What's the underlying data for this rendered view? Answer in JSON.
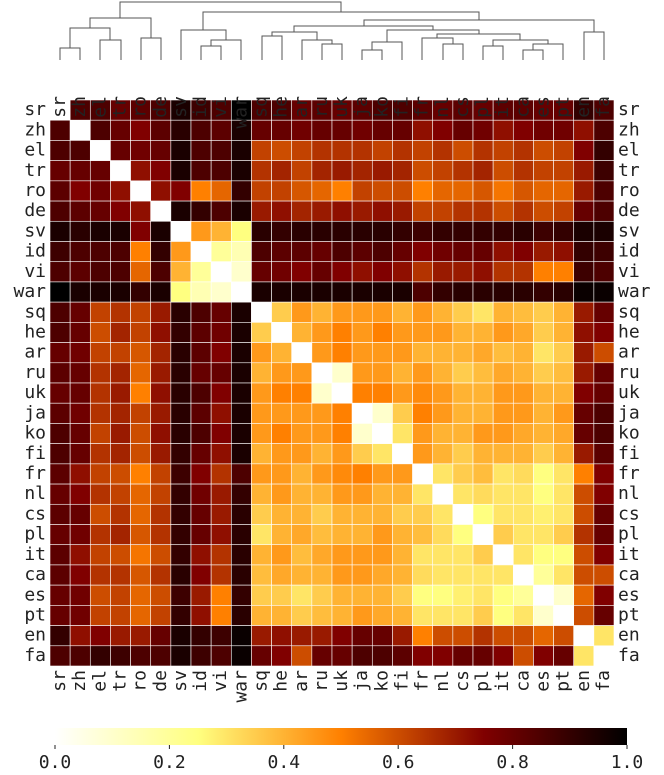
{
  "chart_data": {
    "type": "heatmap",
    "colormap": "afmhot_r",
    "clim": [
      0,
      1
    ],
    "labels": [
      "sr",
      "zh",
      "el",
      "tr",
      "ro",
      "de",
      "sv",
      "id",
      "vi",
      "war",
      "sq",
      "he",
      "ar",
      "ru",
      "uk",
      "ja",
      "ko",
      "fi",
      "fr",
      "nl",
      "cs",
      "pl",
      "it",
      "ca",
      "es",
      "pt",
      "en",
      "fa"
    ],
    "values": [
      [
        0,
        0.85,
        0.85,
        0.8,
        0.82,
        0.85,
        0.95,
        0.88,
        0.85,
        1,
        0.85,
        0.85,
        0.8,
        0.82,
        0.8,
        0.82,
        0.85,
        0.85,
        0.82,
        0.8,
        0.82,
        0.8,
        0.82,
        0.82,
        0.8,
        0.8,
        0.9,
        0.85
      ],
      [
        0.85,
        0,
        0.85,
        0.8,
        0.75,
        0.82,
        0.92,
        0.85,
        0.82,
        0.95,
        0.8,
        0.8,
        0.78,
        0.8,
        0.8,
        0.78,
        0.8,
        0.8,
        0.72,
        0.75,
        0.8,
        0.78,
        0.72,
        0.75,
        0.78,
        0.78,
        0.72,
        0.85
      ],
      [
        0.85,
        0.85,
        0,
        0.8,
        0.78,
        0.8,
        0.95,
        0.85,
        0.85,
        0.95,
        0.62,
        0.6,
        0.62,
        0.65,
        0.65,
        0.65,
        0.62,
        0.65,
        0.62,
        0.65,
        0.6,
        0.65,
        0.62,
        0.65,
        0.6,
        0.62,
        0.75,
        0.9
      ],
      [
        0.8,
        0.8,
        0.8,
        0,
        0.72,
        0.75,
        0.95,
        0.85,
        0.85,
        0.95,
        0.65,
        0.68,
        0.62,
        0.68,
        0.7,
        0.68,
        0.7,
        0.68,
        0.6,
        0.62,
        0.65,
        0.68,
        0.6,
        0.65,
        0.62,
        0.62,
        0.7,
        0.88
      ],
      [
        0.82,
        0.75,
        0.78,
        0.72,
        0,
        0.72,
        0.75,
        0.5,
        0.55,
        0.9,
        0.62,
        0.62,
        0.58,
        0.55,
        0.5,
        0.62,
        0.6,
        0.6,
        0.5,
        0.55,
        0.55,
        0.58,
        0.52,
        0.58,
        0.55,
        0.55,
        0.7,
        0.85
      ],
      [
        0.85,
        0.82,
        0.8,
        0.75,
        0.72,
        0,
        0.95,
        0.9,
        0.85,
        0.95,
        0.7,
        0.72,
        0.68,
        0.7,
        0.72,
        0.7,
        0.72,
        0.7,
        0.62,
        0.62,
        0.65,
        0.65,
        0.6,
        0.65,
        0.6,
        0.62,
        0.8,
        0.85
      ],
      [
        0.95,
        0.92,
        0.95,
        0.95,
        0.75,
        0.95,
        0,
        0.45,
        0.4,
        0.25,
        0.92,
        0.9,
        0.92,
        0.92,
        0.92,
        0.92,
        0.92,
        0.9,
        0.88,
        0.9,
        0.9,
        0.9,
        0.9,
        0.92,
        0.88,
        0.9,
        0.95,
        0.95
      ],
      [
        0.88,
        0.85,
        0.85,
        0.85,
        0.5,
        0.9,
        0.45,
        0,
        0.2,
        0.15,
        0.85,
        0.82,
        0.82,
        0.8,
        0.85,
        0.82,
        0.85,
        0.8,
        0.75,
        0.78,
        0.8,
        0.8,
        0.72,
        0.75,
        0.7,
        0.72,
        0.9,
        0.88
      ],
      [
        0.85,
        0.82,
        0.85,
        0.85,
        0.55,
        0.85,
        0.4,
        0.2,
        0,
        0.1,
        0.8,
        0.78,
        0.75,
        0.8,
        0.75,
        0.72,
        0.75,
        0.72,
        0.65,
        0.7,
        0.7,
        0.72,
        0.65,
        0.65,
        0.5,
        0.5,
        0.88,
        0.85
      ],
      [
        1,
        0.95,
        0.95,
        0.95,
        0.9,
        0.95,
        0.25,
        0.15,
        0.1,
        0,
        0.95,
        0.95,
        0.95,
        0.95,
        0.95,
        0.95,
        0.95,
        0.95,
        0.85,
        0.9,
        0.92,
        0.92,
        0.92,
        0.92,
        0.9,
        0.92,
        0.98,
        0.98
      ],
      [
        0.85,
        0.8,
        0.62,
        0.65,
        0.62,
        0.7,
        0.92,
        0.85,
        0.8,
        0.95,
        0,
        0.35,
        0.45,
        0.4,
        0.45,
        0.45,
        0.45,
        0.4,
        0.45,
        0.4,
        0.35,
        0.3,
        0.4,
        0.38,
        0.35,
        0.4,
        0.7,
        0.8
      ],
      [
        0.85,
        0.8,
        0.6,
        0.68,
        0.62,
        0.72,
        0.9,
        0.82,
        0.78,
        0.95,
        0.35,
        0,
        0.4,
        0.45,
        0.5,
        0.45,
        0.5,
        0.45,
        0.45,
        0.45,
        0.4,
        0.4,
        0.45,
        0.42,
        0.35,
        0.4,
        0.72,
        0.75
      ],
      [
        0.8,
        0.78,
        0.62,
        0.62,
        0.58,
        0.68,
        0.92,
        0.82,
        0.75,
        0.95,
        0.45,
        0.4,
        0,
        0.45,
        0.5,
        0.45,
        0.45,
        0.45,
        0.4,
        0.4,
        0.4,
        0.42,
        0.38,
        0.4,
        0.3,
        0.35,
        0.7,
        0.6
      ],
      [
        0.82,
        0.8,
        0.65,
        0.68,
        0.55,
        0.7,
        0.92,
        0.8,
        0.8,
        0.95,
        0.4,
        0.45,
        0.45,
        0,
        0.1,
        0.45,
        0.45,
        0.4,
        0.45,
        0.4,
        0.35,
        0.38,
        0.42,
        0.4,
        0.35,
        0.38,
        0.7,
        0.8
      ],
      [
        0.8,
        0.8,
        0.65,
        0.7,
        0.5,
        0.72,
        0.92,
        0.85,
        0.75,
        0.95,
        0.45,
        0.5,
        0.5,
        0.1,
        0,
        0.5,
        0.5,
        0.45,
        0.48,
        0.45,
        0.4,
        0.4,
        0.45,
        0.45,
        0.4,
        0.4,
        0.75,
        0.8
      ],
      [
        0.82,
        0.78,
        0.65,
        0.68,
        0.62,
        0.7,
        0.92,
        0.82,
        0.72,
        0.95,
        0.45,
        0.45,
        0.45,
        0.45,
        0.5,
        0,
        0.1,
        0.35,
        0.5,
        0.45,
        0.4,
        0.4,
        0.45,
        0.45,
        0.4,
        0.45,
        0.8,
        0.85
      ],
      [
        0.85,
        0.8,
        0.62,
        0.7,
        0.6,
        0.72,
        0.92,
        0.85,
        0.75,
        0.95,
        0.45,
        0.5,
        0.45,
        0.45,
        0.5,
        0.1,
        0,
        0.3,
        0.45,
        0.4,
        0.4,
        0.45,
        0.45,
        0.42,
        0.4,
        0.42,
        0.8,
        0.85
      ],
      [
        0.85,
        0.8,
        0.65,
        0.68,
        0.6,
        0.7,
        0.9,
        0.8,
        0.72,
        0.95,
        0.4,
        0.45,
        0.45,
        0.4,
        0.45,
        0.35,
        0.3,
        0,
        0.45,
        0.4,
        0.35,
        0.4,
        0.4,
        0.4,
        0.35,
        0.4,
        0.7,
        0.82
      ],
      [
        0.82,
        0.72,
        0.62,
        0.6,
        0.5,
        0.62,
        0.88,
        0.75,
        0.65,
        0.85,
        0.45,
        0.45,
        0.4,
        0.45,
        0.48,
        0.5,
        0.45,
        0.45,
        0,
        0.3,
        0.35,
        0.38,
        0.3,
        0.32,
        0.25,
        0.3,
        0.5,
        0.75
      ],
      [
        0.8,
        0.75,
        0.65,
        0.62,
        0.55,
        0.62,
        0.9,
        0.78,
        0.7,
        0.9,
        0.4,
        0.45,
        0.4,
        0.4,
        0.45,
        0.45,
        0.4,
        0.4,
        0.3,
        0,
        0.3,
        0.32,
        0.3,
        0.3,
        0.25,
        0.3,
        0.6,
        0.75
      ],
      [
        0.82,
        0.8,
        0.6,
        0.65,
        0.55,
        0.65,
        0.9,
        0.8,
        0.7,
        0.92,
        0.35,
        0.4,
        0.4,
        0.35,
        0.4,
        0.4,
        0.4,
        0.35,
        0.35,
        0.3,
        0,
        0.25,
        0.3,
        0.3,
        0.28,
        0.3,
        0.6,
        0.8
      ],
      [
        0.8,
        0.78,
        0.65,
        0.68,
        0.58,
        0.65,
        0.9,
        0.8,
        0.72,
        0.92,
        0.3,
        0.4,
        0.42,
        0.38,
        0.4,
        0.4,
        0.45,
        0.4,
        0.38,
        0.32,
        0.25,
        0,
        0.35,
        0.3,
        0.3,
        0.35,
        0.65,
        0.8
      ],
      [
        0.82,
        0.72,
        0.62,
        0.6,
        0.52,
        0.6,
        0.9,
        0.72,
        0.65,
        0.92,
        0.4,
        0.45,
        0.38,
        0.42,
        0.45,
        0.45,
        0.45,
        0.4,
        0.3,
        0.3,
        0.3,
        0.35,
        0,
        0.3,
        0.25,
        0.25,
        0.6,
        0.75
      ],
      [
        0.82,
        0.75,
        0.65,
        0.65,
        0.58,
        0.65,
        0.92,
        0.75,
        0.65,
        0.92,
        0.38,
        0.42,
        0.4,
        0.4,
        0.45,
        0.45,
        0.42,
        0.4,
        0.32,
        0.3,
        0.3,
        0.3,
        0.3,
        0,
        0.2,
        0.3,
        0.6,
        0.6
      ],
      [
        0.8,
        0.78,
        0.6,
        0.62,
        0.55,
        0.6,
        0.88,
        0.7,
        0.5,
        0.9,
        0.35,
        0.35,
        0.3,
        0.35,
        0.4,
        0.4,
        0.4,
        0.35,
        0.25,
        0.25,
        0.28,
        0.3,
        0.25,
        0.2,
        0,
        0.1,
        0.55,
        0.75
      ],
      [
        0.8,
        0.78,
        0.62,
        0.62,
        0.55,
        0.62,
        0.9,
        0.72,
        0.5,
        0.92,
        0.4,
        0.4,
        0.35,
        0.38,
        0.4,
        0.45,
        0.42,
        0.4,
        0.3,
        0.3,
        0.3,
        0.35,
        0.25,
        0.3,
        0.1,
        0,
        0.6,
        0.8
      ],
      [
        0.9,
        0.72,
        0.75,
        0.7,
        0.7,
        0.8,
        0.95,
        0.9,
        0.88,
        0.98,
        0.7,
        0.72,
        0.7,
        0.7,
        0.75,
        0.8,
        0.8,
        0.7,
        0.5,
        0.6,
        0.6,
        0.65,
        0.6,
        0.6,
        0.55,
        0.6,
        0,
        0.3
      ],
      [
        0.85,
        0.85,
        0.9,
        0.88,
        0.85,
        0.85,
        0.95,
        0.88,
        0.85,
        0.98,
        0.8,
        0.75,
        0.6,
        0.8,
        0.8,
        0.85,
        0.85,
        0.82,
        0.75,
        0.75,
        0.8,
        0.8,
        0.75,
        0.6,
        0.75,
        0.8,
        0.3,
        0
      ]
    ],
    "colorbar_ticks": [
      {
        "value": 0,
        "label": "0.0"
      },
      {
        "value": 0.2,
        "label": "0.2"
      },
      {
        "value": 0.4,
        "label": "0.4"
      },
      {
        "value": 0.6,
        "label": "0.6"
      },
      {
        "value": 0.8,
        "label": "0.8"
      },
      {
        "value": 1,
        "label": "1.0"
      }
    ]
  }
}
